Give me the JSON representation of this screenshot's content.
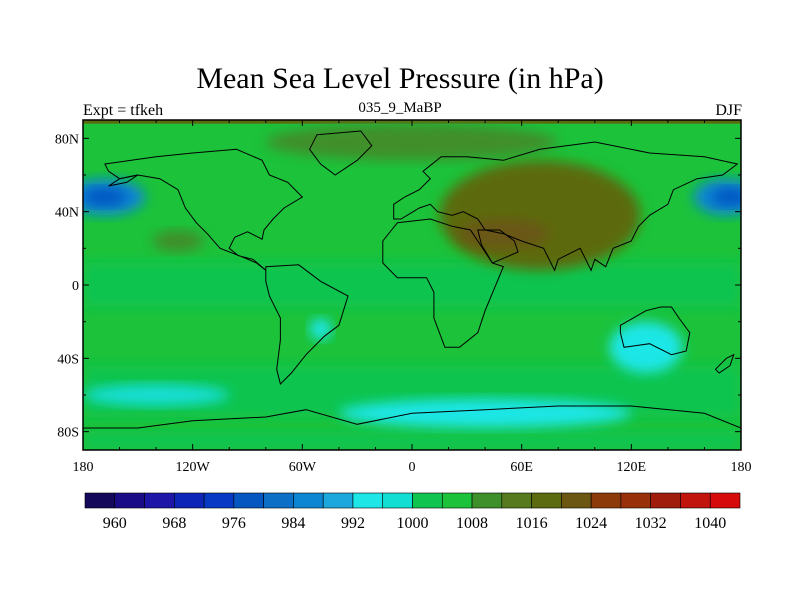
{
  "chart_data": {
    "type": "heatmap",
    "title": "Mean Sea Level Pressure (in hPa)",
    "left_string": "Expt = tfkeh",
    "center_string": "035_9_MaBP",
    "right_string": "DJF",
    "x_axis": {
      "range": [
        -180,
        180
      ],
      "ticks": [
        -180,
        -120,
        -60,
        0,
        60,
        120,
        180
      ],
      "tick_labels": [
        "180",
        "120W",
        "60W",
        "0",
        "60E",
        "120E",
        "180"
      ]
    },
    "y_axis": {
      "range": [
        -90,
        90
      ],
      "ticks": [
        -80,
        -40,
        0,
        40,
        80
      ],
      "tick_labels": [
        "80S",
        "40S",
        "0",
        "40N",
        "80N"
      ]
    },
    "colorbar": {
      "levels": [
        960,
        964,
        968,
        972,
        976,
        980,
        984,
        988,
        992,
        996,
        1000,
        1004,
        1008,
        1012,
        1016,
        1020,
        1024,
        1028,
        1032,
        1036,
        1040
      ],
      "labels": [
        "960",
        "968",
        "976",
        "984",
        "992",
        "1000",
        "1008",
        "1016",
        "1024",
        "1032",
        "1040"
      ],
      "label_values": [
        960,
        968,
        976,
        984,
        992,
        1000,
        1008,
        1016,
        1024,
        1032,
        1040
      ],
      "colors": [
        "#14085a",
        "#1a0b86",
        "#1d16a6",
        "#0d26b8",
        "#0739c4",
        "#0656c2",
        "#0d70c6",
        "#0c86d2",
        "#1ca8dc",
        "#1fe6e6",
        "#12ded4",
        "#10c450",
        "#1bc23a",
        "#3f8f2a",
        "#567a1d",
        "#5c6a10",
        "#6b5712",
        "#8c3a0a",
        "#983009",
        "#a01c0c",
        "#c0140c",
        "#d60a0a"
      ]
    },
    "fill_regions": [
      {
        "name": "north-pacific-low",
        "value": 986,
        "center": [
          -168,
          48
        ],
        "radii": [
          22,
          10
        ]
      },
      {
        "name": "north-pacific-low-core",
        "value": 978,
        "center": [
          -168,
          48
        ],
        "radii": [
          12,
          5
        ]
      },
      {
        "name": "north-atlantic-low",
        "value": 986,
        "center": [
          172,
          48
        ],
        "radii": [
          18,
          10
        ]
      },
      {
        "name": "north-atlantic-low-core",
        "value": 978,
        "center": [
          174,
          48
        ],
        "radii": [
          10,
          5
        ]
      },
      {
        "name": "siberian-high",
        "value": 1018,
        "center": [
          70,
          38
        ],
        "radii": [
          55,
          30
        ]
      },
      {
        "name": "siberian-high-core",
        "value": 1022,
        "center": [
          50,
          28
        ],
        "radii": [
          25,
          8
        ]
      },
      {
        "name": "aleutian-ridge",
        "value": 1009,
        "center": [
          -128,
          24
        ],
        "radii": [
          14,
          6
        ]
      },
      {
        "name": "arctic-ridge",
        "value": 1009,
        "center": [
          0,
          78
        ],
        "radii": [
          80,
          10
        ]
      },
      {
        "name": "south-pacific-trough",
        "value": 998,
        "center": [
          -140,
          -60
        ],
        "radii": [
          40,
          6
        ]
      },
      {
        "name": "southern-ocean-trough",
        "value": 994,
        "center": [
          40,
          -70
        ],
        "radii": [
          80,
          8
        ]
      },
      {
        "name": "australia-low",
        "value": 994,
        "center": [
          128,
          -34
        ],
        "radii": [
          20,
          14
        ]
      },
      {
        "name": "south-america-low",
        "value": 994,
        "center": [
          -50,
          -24
        ],
        "radii": [
          6,
          6
        ]
      }
    ]
  }
}
